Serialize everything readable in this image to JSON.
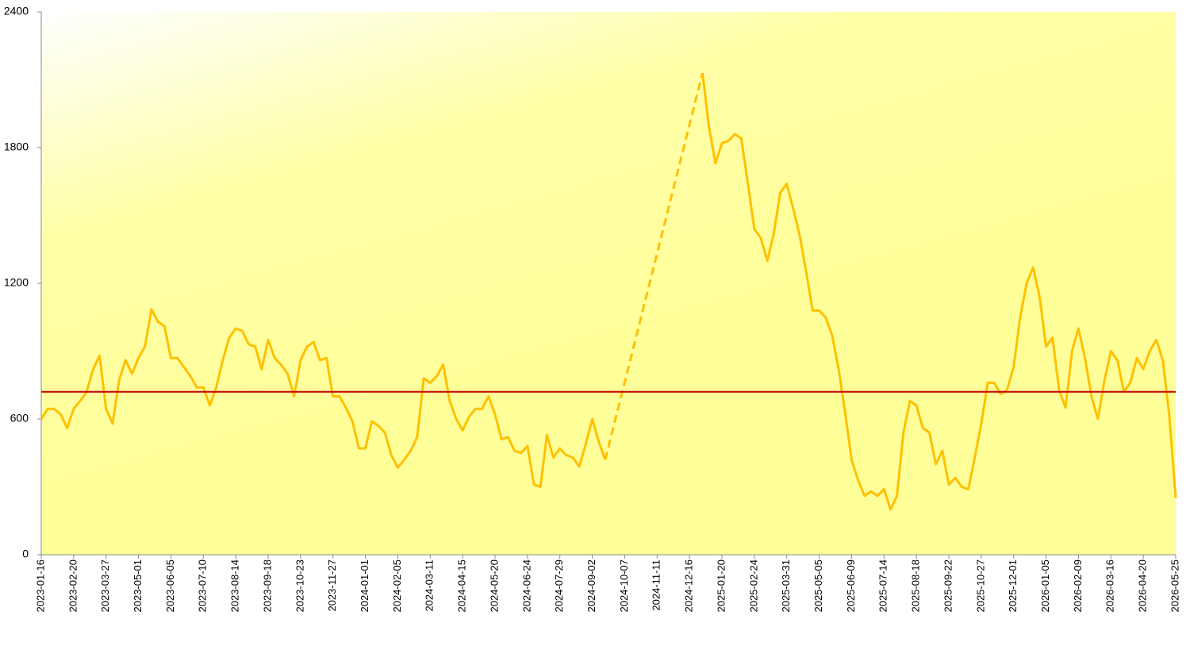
{
  "chart_data": {
    "type": "line",
    "xlim": [
      "2023-01-16",
      "2026-05-25"
    ],
    "xticks": [
      "2023-01-16",
      "2023-02-20",
      "2023-03-27",
      "2023-05-01",
      "2023-06-05",
      "2023-07-10",
      "2023-08-14",
      "2023-09-18",
      "2023-10-23",
      "2023-11-27",
      "2024-01-01",
      "2024-02-05",
      "2024-03-11",
      "2024-04-15",
      "2024-05-20",
      "2024-06-24",
      "2024-07-29",
      "2024-09-02",
      "2024-10-07",
      "2024-11-11",
      "2024-12-16",
      "2025-01-20",
      "2025-02-24",
      "2025-03-31",
      "2025-05-05",
      "2025-06-09",
      "2025-07-14",
      "2025-08-18",
      "2025-09-22",
      "2025-10-27",
      "2025-12-01",
      "2026-01-05",
      "2026-02-09",
      "2026-03-16",
      "2026-04-20",
      "2026-05-25"
    ],
    "ylim": [
      0,
      2400
    ],
    "yticks": [
      0,
      600,
      1200,
      1800,
      2400
    ],
    "grid": false,
    "reference_line": {
      "value": 720,
      "color": "#c00000"
    },
    "series": [
      {
        "color": "#ffc000",
        "line_style": "solid",
        "x": [
          "2023-01-16",
          "2023-01-23",
          "2023-01-30",
          "2023-02-06",
          "2023-02-13",
          "2023-02-20",
          "2023-02-27",
          "2023-03-06",
          "2023-03-13",
          "2023-03-20",
          "2023-03-27",
          "2023-04-03",
          "2023-04-10",
          "2023-04-17",
          "2023-04-24",
          "2023-05-01",
          "2023-05-08",
          "2023-05-15",
          "2023-05-22",
          "2023-05-29",
          "2023-06-05",
          "2023-06-12",
          "2023-06-19",
          "2023-06-26",
          "2023-07-03",
          "2023-07-10",
          "2023-07-17",
          "2023-07-24",
          "2023-07-31",
          "2023-08-07",
          "2023-08-14",
          "2023-08-21",
          "2023-08-28",
          "2023-09-04",
          "2023-09-11",
          "2023-09-18",
          "2023-09-25",
          "2023-10-02",
          "2023-10-09",
          "2023-10-16",
          "2023-10-23",
          "2023-10-30",
          "2023-11-06",
          "2023-11-13",
          "2023-11-20",
          "2023-11-27",
          "2023-12-04",
          "2023-12-11",
          "2023-12-18",
          "2023-12-25",
          "2024-01-01",
          "2024-01-08",
          "2024-01-15",
          "2024-01-22",
          "2024-01-29",
          "2024-02-05",
          "2024-02-12",
          "2024-02-19",
          "2024-02-26",
          "2024-03-04",
          "2024-03-11",
          "2024-03-18",
          "2024-03-25",
          "2024-04-01",
          "2024-04-08",
          "2024-04-15",
          "2024-04-22",
          "2024-04-29",
          "2024-05-06",
          "2024-05-13",
          "2024-05-20",
          "2024-05-27",
          "2024-06-03",
          "2024-06-10",
          "2024-06-17",
          "2024-06-24",
          "2024-07-01",
          "2024-07-08",
          "2024-07-15",
          "2024-07-22",
          "2024-07-29",
          "2024-08-05",
          "2024-08-12",
          "2024-08-19",
          "2024-08-26",
          "2024-09-02",
          "2024-09-09",
          "2024-09-16"
        ],
        "values": [
          600,
          645,
          645,
          620,
          560,
          645,
          680,
          720,
          820,
          880,
          645,
          580,
          770,
          860,
          800,
          870,
          920,
          1085,
          1030,
          1010,
          870,
          870,
          830,
          790,
          740,
          740,
          660,
          740,
          860,
          960,
          1000,
          990,
          930,
          920,
          820,
          950,
          870,
          840,
          800,
          700,
          860,
          920,
          940,
          860,
          870,
          700,
          700,
          650,
          590,
          470,
          470,
          590,
          570,
          540,
          440,
          385,
          420,
          460,
          520,
          780,
          760,
          790,
          840,
          680,
          600,
          550,
          610,
          645,
          645,
          700,
          620,
          510,
          520,
          460,
          450,
          480,
          310,
          300,
          530,
          430,
          470,
          440,
          430,
          390,
          490,
          600,
          500,
          420
        ]
      },
      {
        "color": "#ffc000",
        "line_style": "dashed",
        "x": [
          "2024-09-16",
          "2024-12-30"
        ],
        "values": [
          420,
          2130
        ]
      },
      {
        "color": "#ffc000",
        "line_style": "solid",
        "x": [
          "2024-12-30",
          "2025-01-06",
          "2025-01-13",
          "2025-01-20",
          "2025-01-27",
          "2025-02-03",
          "2025-02-10",
          "2025-02-17",
          "2025-02-24",
          "2025-03-03",
          "2025-03-10",
          "2025-03-17",
          "2025-03-24",
          "2025-03-31",
          "2025-04-07",
          "2025-04-14",
          "2025-04-21",
          "2025-04-28",
          "2025-05-05",
          "2025-05-12",
          "2025-05-19",
          "2025-05-26",
          "2025-06-02",
          "2025-06-09",
          "2025-06-16",
          "2025-06-23",
          "2025-06-30",
          "2025-07-07",
          "2025-07-14",
          "2025-07-21",
          "2025-07-28",
          "2025-08-04",
          "2025-08-11",
          "2025-08-18",
          "2025-08-25",
          "2025-09-01",
          "2025-09-08",
          "2025-09-15",
          "2025-09-22",
          "2025-09-29",
          "2025-10-06",
          "2025-10-13",
          "2025-10-20",
          "2025-10-27",
          "2025-11-03",
          "2025-11-10",
          "2025-11-17",
          "2025-11-24",
          "2025-12-01",
          "2025-12-08",
          "2025-12-15",
          "2025-12-22",
          "2025-12-29",
          "2026-01-05",
          "2026-01-12",
          "2026-01-19",
          "2026-01-26",
          "2026-02-02",
          "2026-02-09",
          "2026-02-16",
          "2026-02-23",
          "2026-03-02",
          "2026-03-09",
          "2026-03-16",
          "2026-03-23",
          "2026-03-30",
          "2026-04-06",
          "2026-04-13",
          "2026-04-20",
          "2026-04-27",
          "2026-05-04",
          "2026-05-11",
          "2026-05-18",
          "2026-05-25"
        ],
        "values": [
          2130,
          1890,
          1730,
          1820,
          1830,
          1860,
          1840,
          1640,
          1440,
          1400,
          1300,
          1420,
          1600,
          1640,
          1530,
          1410,
          1250,
          1080,
          1080,
          1050,
          970,
          820,
          630,
          420,
          330,
          260,
          280,
          260,
          290,
          200,
          260,
          540,
          680,
          660,
          560,
          540,
          400,
          460,
          310,
          340,
          300,
          290,
          430,
          580,
          760,
          760,
          710,
          730,
          830,
          1050,
          1200,
          1270,
          1140,
          920,
          960,
          730,
          650,
          900,
          1000,
          870,
          700,
          600,
          770,
          900,
          860,
          720,
          760,
          870,
          820,
          900,
          950,
          860,
          620,
          250
        ]
      }
    ]
  }
}
